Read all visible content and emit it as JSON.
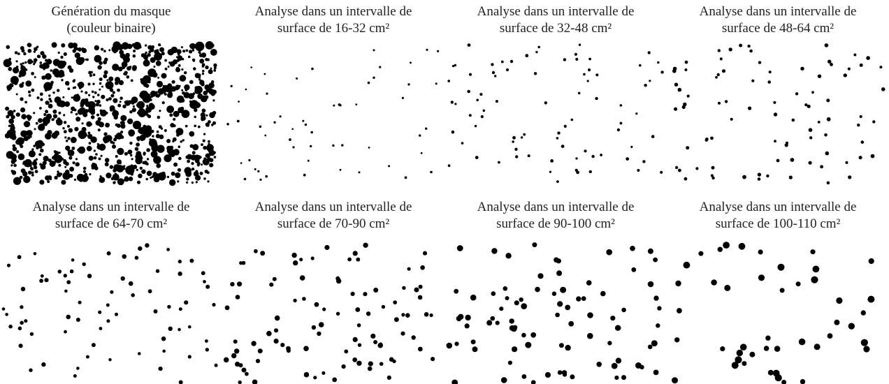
{
  "panels": [
    {
      "title": [
        "Génération du masque",
        "(couleur binaire)"
      ]
    },
    {
      "title": [
        "Analyse dans un intervalle de",
        "surface de 16-32 cm²"
      ]
    },
    {
      "title": [
        "Analyse dans un intervalle de",
        "surface de 32-48 cm²"
      ]
    },
    {
      "title": [
        "Analyse dans un intervalle de",
        "surface de 48-64 cm²"
      ]
    },
    {
      "title": [
        "Analyse dans un intervalle de",
        "surface de 64-70 cm²"
      ]
    },
    {
      "title": [
        "Analyse dans un intervalle de",
        "surface de 70-90 cm²"
      ]
    },
    {
      "title": [
        "Analyse dans un intervalle de",
        "surface de 90-100 cm²"
      ]
    },
    {
      "title": [
        "Analyse dans un intervalle de",
        "surface de 100-110 cm²"
      ]
    }
  ]
}
